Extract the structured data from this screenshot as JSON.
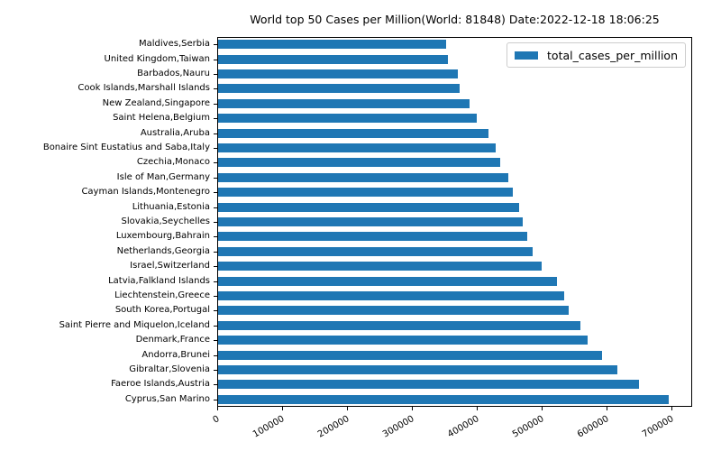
{
  "chart_data": {
    "type": "bar",
    "orientation": "horizontal",
    "title": "World top 50 Cases per Million(World: 81848) Date:2022-12-18 18:06:25",
    "legend_entries": [
      "total_cases_per_million"
    ],
    "legend_position": "upper right",
    "bar_color": "#1f77b4",
    "grid": false,
    "categories": [
      "Maldives,Serbia",
      "United Kingdom,Taiwan",
      "Barbados,Nauru",
      "Cook Islands,Marshall Islands",
      "New Zealand,Singapore",
      "Saint Helena,Belgium",
      "Australia,Aruba",
      "Bonaire Sint Eustatius and Saba,Italy",
      "Czechia,Monaco",
      "Isle of Man,Germany",
      "Cayman Islands,Montenegro",
      "Lithuania,Estonia",
      "Slovakia,Seychelles",
      "Luxembourg,Bahrain",
      "Netherlands,Georgia",
      "Israel,Switzerland",
      "Latvia,Falkland Islands",
      "Liechtenstein,Greece",
      "South Korea,Portugal",
      "Saint Pierre and Miquelon,Iceland",
      "Denmark,France",
      "Andorra,Brunei",
      "Gibraltar,Slovenia",
      "Faeroe Islands,Austria",
      "Cyprus,San Marino"
    ],
    "values": [
      353000,
      356000,
      371000,
      374000,
      389000,
      400000,
      418000,
      429000,
      436000,
      449000,
      456000,
      465000,
      471000,
      478000,
      486000,
      501000,
      524000,
      536000,
      543000,
      561000,
      572000,
      594000,
      618000,
      651000,
      697000
    ],
    "xlabel": "",
    "ylabel": "",
    "x_ticks": [
      0,
      100000,
      200000,
      300000,
      400000,
      500000,
      600000,
      700000
    ],
    "x_tick_labels": [
      "0",
      "100000",
      "200000",
      "300000",
      "400000",
      "500000",
      "600000",
      "700000"
    ],
    "xlim": [
      0,
      732000
    ]
  }
}
